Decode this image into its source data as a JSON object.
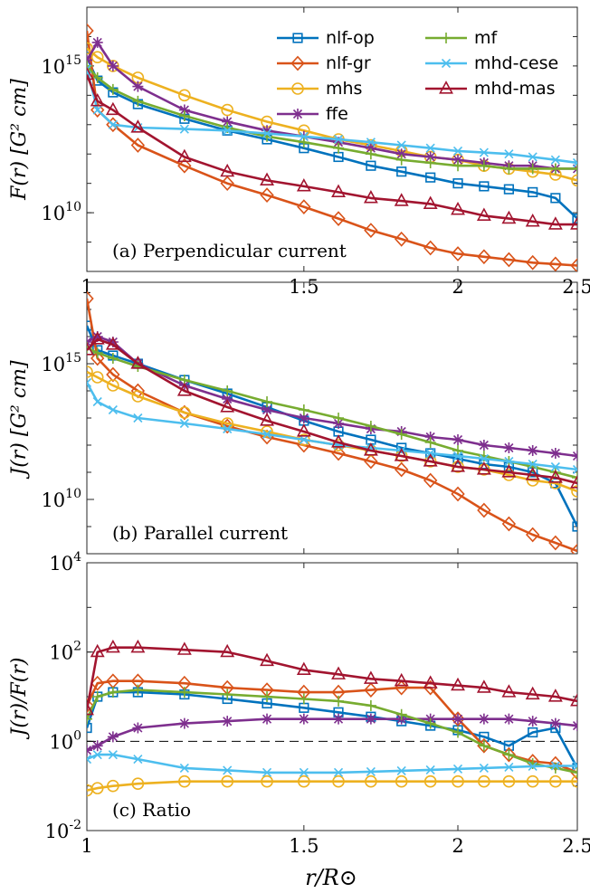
{
  "figure": {
    "xlabel": "r/R⊙",
    "legend": [
      {
        "name": "nlf-op",
        "color": "#0072BD",
        "marker": "square"
      },
      {
        "name": "nlf-gr",
        "color": "#D95319",
        "marker": "diamond"
      },
      {
        "name": "mhs",
        "color": "#EDB120",
        "marker": "circle"
      },
      {
        "name": "ffe",
        "color": "#7E2F8E",
        "marker": "asterisk"
      },
      {
        "name": "mf",
        "color": "#77AC30",
        "marker": "plus"
      },
      {
        "name": "mhd-cese",
        "color": "#4DBEEE",
        "marker": "x"
      },
      {
        "name": "mhd-mas",
        "color": "#A2142F",
        "marker": "triangle"
      }
    ]
  },
  "chart_data": [
    {
      "type": "line",
      "panel_label": "(a) Perpendicular current",
      "ylabel": "F(r) [G² cm]",
      "yscale": "log",
      "xscale": "log",
      "xlim": [
        1,
        2.5
      ],
      "ylim_log10": [
        8,
        17
      ],
      "xticks": [
        {
          "v": 1,
          "label": "1"
        },
        {
          "v": 1.5,
          "label": "1.5"
        },
        {
          "v": 2,
          "label": "2"
        },
        {
          "v": 2.5,
          "label": "2.5"
        }
      ],
      "yticks": [
        {
          "exp": 10,
          "base": "10",
          "sup": "10"
        },
        {
          "exp": 15,
          "base": "10",
          "sup": "15"
        }
      ],
      "legend_position": "top-right",
      "x": [
        1.0,
        1.02,
        1.05,
        1.1,
        1.2,
        1.3,
        1.4,
        1.5,
        1.6,
        1.7,
        1.8,
        1.9,
        2.0,
        2.1,
        2.2,
        2.3,
        2.4,
        2.5
      ],
      "series": [
        {
          "name": "nlf-op",
          "log10_values": [
            15.3,
            14.5,
            14.1,
            13.7,
            13.2,
            12.8,
            12.5,
            12.2,
            11.9,
            11.6,
            11.4,
            11.2,
            11.0,
            10.9,
            10.8,
            10.7,
            10.5,
            9.8
          ]
        },
        {
          "name": "nlf-gr",
          "log10_values": [
            16.2,
            13.5,
            13.0,
            12.3,
            11.6,
            11.0,
            10.6,
            10.2,
            9.8,
            9.4,
            9.1,
            8.8,
            8.6,
            8.5,
            8.4,
            8.3,
            8.25,
            8.2
          ]
        },
        {
          "name": "mhs",
          "log10_values": [
            15.6,
            15.3,
            15.0,
            14.6,
            14.0,
            13.5,
            13.1,
            12.8,
            12.5,
            12.3,
            12.1,
            11.9,
            11.8,
            11.6,
            11.5,
            11.4,
            11.3,
            11.1
          ]
        },
        {
          "name": "ffe",
          "log10_values": [
            15.2,
            15.8,
            15.0,
            14.3,
            13.5,
            13.1,
            12.8,
            12.6,
            12.4,
            12.2,
            12.0,
            11.9,
            11.8,
            11.7,
            11.6,
            11.6,
            11.5,
            11.5
          ]
        },
        {
          "name": "mf",
          "log10_values": [
            15.0,
            14.6,
            14.2,
            13.8,
            13.3,
            12.9,
            12.6,
            12.4,
            12.2,
            12.0,
            11.8,
            11.7,
            11.6,
            11.6,
            11.5,
            11.5,
            11.5,
            11.5
          ]
        },
        {
          "name": "mhd-cese",
          "log10_values": [
            14.9,
            13.5,
            13.0,
            12.9,
            12.85,
            12.8,
            12.7,
            12.6,
            12.5,
            12.4,
            12.3,
            12.2,
            12.1,
            12.05,
            12.0,
            11.9,
            11.8,
            11.7
          ]
        },
        {
          "name": "mhd-mas",
          "log10_values": [
            14.7,
            13.8,
            13.5,
            12.9,
            11.9,
            11.4,
            11.1,
            10.9,
            10.7,
            10.5,
            10.4,
            10.3,
            10.1,
            9.9,
            9.8,
            9.7,
            9.6,
            9.6
          ]
        }
      ]
    },
    {
      "type": "line",
      "panel_label": "(b) Parallel current",
      "ylabel": "J(r) [G² cm]",
      "yscale": "log",
      "xscale": "log",
      "xlim": [
        1,
        2.5
      ],
      "ylim_log10": [
        8,
        18
      ],
      "xticks": [
        {
          "v": 1,
          "label": ""
        },
        {
          "v": 1.5,
          "label": ""
        },
        {
          "v": 2,
          "label": ""
        },
        {
          "v": 2.5,
          "label": ""
        }
      ],
      "yticks": [
        {
          "exp": 10,
          "base": "10",
          "sup": "10"
        },
        {
          "exp": 15,
          "base": "10",
          "sup": "15"
        }
      ],
      "x": [
        1.0,
        1.02,
        1.05,
        1.1,
        1.2,
        1.3,
        1.4,
        1.5,
        1.6,
        1.7,
        1.8,
        1.9,
        2.0,
        2.1,
        2.2,
        2.3,
        2.4,
        2.5
      ],
      "series": [
        {
          "name": "nlf-op",
          "log10_values": [
            16.4,
            15.5,
            15.3,
            15.0,
            14.4,
            13.9,
            13.4,
            12.9,
            12.5,
            12.2,
            11.9,
            11.7,
            11.5,
            11.3,
            11.2,
            11.0,
            10.6,
            9.0
          ]
        },
        {
          "name": "nlf-gr",
          "log10_values": [
            17.4,
            15.2,
            14.6,
            14.0,
            13.2,
            12.7,
            12.3,
            12.0,
            11.7,
            11.4,
            11.1,
            10.7,
            10.2,
            9.6,
            9.1,
            8.7,
            8.4,
            8.1
          ]
        },
        {
          "name": "mhs",
          "log10_values": [
            14.7,
            14.5,
            14.2,
            13.8,
            13.2,
            12.8,
            12.5,
            12.2,
            12.0,
            11.8,
            11.6,
            11.4,
            11.2,
            11.1,
            10.9,
            10.7,
            10.6,
            10.3
          ]
        },
        {
          "name": "ffe",
          "log10_values": [
            15.8,
            16.0,
            15.8,
            15.0,
            14.2,
            13.7,
            13.3,
            13.0,
            12.8,
            12.6,
            12.5,
            12.3,
            12.2,
            12.0,
            11.9,
            11.8,
            11.7,
            11.6
          ]
        },
        {
          "name": "mf",
          "log10_values": [
            15.6,
            15.4,
            15.2,
            14.9,
            14.4,
            14.0,
            13.6,
            13.3,
            13.0,
            12.7,
            12.4,
            12.1,
            11.8,
            11.6,
            11.4,
            11.2,
            11.0,
            10.8
          ]
        },
        {
          "name": "mhd-cese",
          "log10_values": [
            14.3,
            13.6,
            13.3,
            13.0,
            12.8,
            12.6,
            12.4,
            12.2,
            12.0,
            11.9,
            11.8,
            11.7,
            11.6,
            11.5,
            11.4,
            11.3,
            11.2,
            11.1
          ]
        },
        {
          "name": "mhd-mas",
          "log10_values": [
            15.5,
            15.9,
            15.7,
            15.0,
            14.0,
            13.4,
            12.9,
            12.5,
            12.1,
            11.8,
            11.6,
            11.4,
            11.2,
            11.1,
            11.0,
            10.9,
            10.8,
            10.6
          ]
        }
      ]
    },
    {
      "type": "line",
      "panel_label": "(c) Ratio",
      "ylabel": "J(r)/F(r)",
      "yscale": "log",
      "xscale": "log",
      "xlim": [
        1,
        2.5
      ],
      "ylim_log10": [
        -2,
        4
      ],
      "reference_line": {
        "log10_value": 0,
        "style": "dashed"
      },
      "xticks": [
        {
          "v": 1,
          "label": "1"
        },
        {
          "v": 1.5,
          "label": "1.5"
        },
        {
          "v": 2,
          "label": "2"
        },
        {
          "v": 2.5,
          "label": "2.5"
        }
      ],
      "yticks": [
        {
          "exp": -2,
          "base": "10",
          "sup": "-2"
        },
        {
          "exp": 0,
          "base": "10",
          "sup": "0"
        },
        {
          "exp": 2,
          "base": "10",
          "sup": "2"
        },
        {
          "exp": 4,
          "base": "10",
          "sup": "4"
        }
      ],
      "x": [
        1.0,
        1.02,
        1.05,
        1.1,
        1.2,
        1.3,
        1.4,
        1.5,
        1.6,
        1.7,
        1.8,
        1.9,
        2.0,
        2.1,
        2.2,
        2.3,
        2.4,
        2.5
      ],
      "series": [
        {
          "name": "nlf-op",
          "log10_values": [
            0.3,
            1.0,
            1.1,
            1.1,
            1.05,
            0.95,
            0.85,
            0.75,
            0.65,
            0.55,
            0.45,
            0.35,
            0.25,
            0.1,
            -0.1,
            0.2,
            0.3,
            -0.6
          ]
        },
        {
          "name": "nlf-gr",
          "log10_values": [
            0.8,
            1.3,
            1.35,
            1.35,
            1.3,
            1.2,
            1.15,
            1.1,
            1.1,
            1.15,
            1.2,
            1.2,
            0.5,
            -0.1,
            -0.3,
            -0.45,
            -0.5,
            -0.7
          ]
        },
        {
          "name": "mhs",
          "log10_values": [
            -1.1,
            -1.05,
            -1.0,
            -0.95,
            -0.9,
            -0.9,
            -0.9,
            -0.9,
            -0.9,
            -0.9,
            -0.9,
            -0.9,
            -0.9,
            -0.9,
            -0.9,
            -0.9,
            -0.9,
            -0.9
          ]
        },
        {
          "name": "ffe",
          "log10_values": [
            -0.2,
            -0.1,
            0.1,
            0.3,
            0.4,
            0.45,
            0.5,
            0.5,
            0.5,
            0.5,
            0.5,
            0.5,
            0.5,
            0.5,
            0.5,
            0.45,
            0.4,
            0.35
          ]
        },
        {
          "name": "mf",
          "log10_values": [
            0.5,
            1.0,
            1.1,
            1.15,
            1.1,
            1.05,
            1.0,
            0.95,
            0.9,
            0.8,
            0.6,
            0.4,
            0.2,
            -0.1,
            -0.3,
            -0.5,
            -0.6,
            -0.7
          ]
        },
        {
          "name": "mhd-cese",
          "log10_values": [
            -0.4,
            -0.3,
            -0.3,
            -0.4,
            -0.6,
            -0.65,
            -0.7,
            -0.7,
            -0.7,
            -0.68,
            -0.66,
            -0.64,
            -0.62,
            -0.6,
            -0.58,
            -0.56,
            -0.55,
            -0.55
          ]
        },
        {
          "name": "mhd-mas",
          "log10_values": [
            0.7,
            2.0,
            2.1,
            2.1,
            2.05,
            2.0,
            1.8,
            1.6,
            1.5,
            1.4,
            1.35,
            1.3,
            1.25,
            1.2,
            1.1,
            1.05,
            1.0,
            0.9
          ]
        }
      ]
    }
  ]
}
